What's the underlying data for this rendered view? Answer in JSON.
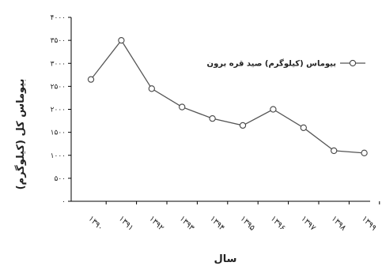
{
  "chart_data": {
    "type": "line",
    "xlabel": "سال",
    "ylabel": "بیوماس کل (کیلوگرم)",
    "categories": [
      "۱۳۹۰",
      "۱۳۹۱",
      "۱۳۹۲",
      "۱۳۹۳",
      "۱۳۹۴",
      "۱۳۹۵",
      "۱۳۹۶",
      "۱۳۹۷",
      "۱۳۹۸",
      "۱۳۹۹"
    ],
    "yticks": [
      0,
      500,
      1000,
      1500,
      2000,
      2500,
      3000,
      3500,
      4000
    ],
    "ytick_labels": [
      "۰",
      "۵۰۰",
      "۱۰۰۰",
      "۱۵۰۰",
      "۲۰۰۰",
      "۲۵۰۰",
      "۳۰۰۰",
      "۳۵۰۰",
      "۴۰۰۰"
    ],
    "ylim": [
      0,
      4000
    ],
    "grid": false,
    "legend_position": "top-right",
    "series": [
      {
        "name": "بیوماس (کیلوگرم) صید قره برون",
        "values": [
          2650,
          3500,
          2450,
          2050,
          1800,
          1650,
          2000,
          1600,
          1100,
          1050
        ]
      }
    ]
  }
}
